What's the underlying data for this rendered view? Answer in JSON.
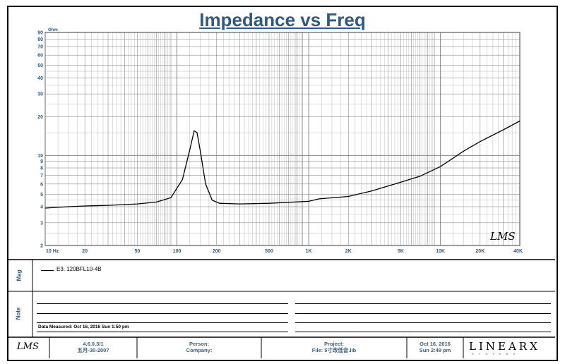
{
  "chart_data": {
    "type": "line",
    "title": "Impedance vs Freq",
    "xscale": "log",
    "yscale": "log",
    "xlim": [
      10,
      40000
    ],
    "ylim": [
      2,
      90
    ],
    "ylabel": "Ohm",
    "x_tick_labels": [
      "10 Hz",
      "20",
      "50",
      "100",
      "200",
      "500",
      "1K",
      "2K",
      "5K",
      "10K",
      "20K",
      "40K"
    ],
    "x_tick_values": [
      10,
      20,
      50,
      100,
      200,
      500,
      1000,
      2000,
      5000,
      10000,
      20000,
      40000
    ],
    "y_tick_labels": [
      "90",
      "80",
      "70",
      "60",
      "50",
      "40",
      "30",
      "20",
      "10",
      "9",
      "8",
      "7",
      "6",
      "5",
      "4",
      "3",
      "2"
    ],
    "y_tick_values": [
      90,
      80,
      70,
      60,
      50,
      40,
      30,
      20,
      10,
      9,
      8,
      7,
      6,
      5,
      4,
      3,
      2
    ],
    "grid": true,
    "series": [
      {
        "name": "E3. 120BFL10-4B",
        "x": [
          10,
          15,
          20,
          30,
          50,
          70,
          90,
          110,
          125,
          135,
          142,
          150,
          165,
          185,
          210,
          300,
          500,
          1000,
          1200,
          2000,
          3000,
          5000,
          7000,
          10000,
          15000,
          20000,
          30000,
          40000
        ],
        "y": [
          3.9,
          4.0,
          4.05,
          4.1,
          4.2,
          4.35,
          4.7,
          6.5,
          11,
          15.5,
          15,
          11,
          6,
          4.5,
          4.25,
          4.2,
          4.25,
          4.4,
          4.6,
          4.8,
          5.3,
          6.2,
          6.9,
          8.2,
          10.8,
          12.8,
          15.8,
          18.5
        ]
      }
    ],
    "watermark": "LMS"
  },
  "panels": {
    "mag_label": "Mag",
    "note_label": "Note",
    "legend_text": "E3. 120BFL10-4B",
    "date_measured": "Data Measured: Oct 16, 2016  Sun  1:50 pm"
  },
  "footer": {
    "logo": "LMS",
    "version": "4.6.0.3/1",
    "version_date": "五月-30-2007",
    "person_label": "Person:",
    "company_label": "Company:",
    "project_label": "Project:",
    "file_label": "File: 5寸改低音.lib",
    "date": "Oct 16, 2016",
    "time": "Sun  2:49 pm",
    "brand": "LINEARX",
    "brand_sub": "SYSTEMS"
  }
}
